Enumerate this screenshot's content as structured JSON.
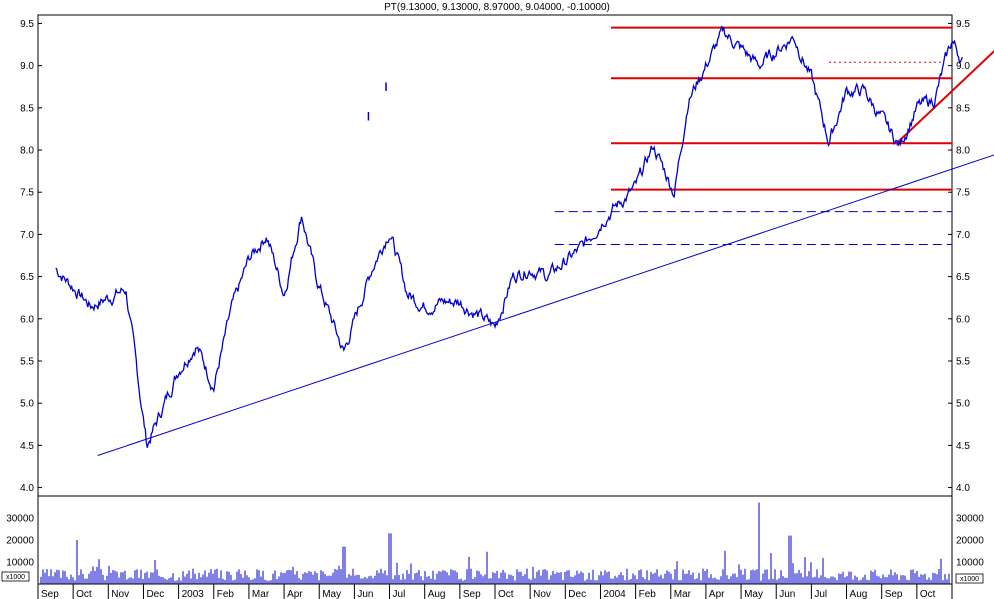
{
  "chart_data": {
    "type": "line",
    "title": "PT(9.13000, 9.13000, 8.97000, 9.04000, -0.10000)",
    "price_axis": {
      "ylim": [
        3.9,
        9.6
      ],
      "ticks": [
        "4.0",
        "4.5",
        "5.0",
        "5.5",
        "6.0",
        "6.5",
        "7.0",
        "7.5",
        "8.0",
        "8.5",
        "9.0",
        "9.5"
      ]
    },
    "volume_axis": {
      "ylim": [
        0,
        40000
      ],
      "ticks": [
        "10000",
        "20000",
        "30000"
      ],
      "unit_label": "x1000"
    },
    "x_labels": [
      "Sep",
      "Oct",
      "Nov",
      "Dec",
      "2003",
      "Feb",
      "Mar",
      "Apr",
      "May",
      "Jun",
      "Jul",
      "Aug",
      "Sep",
      "Oct",
      "Nov",
      "Dec",
      "2004",
      "Feb",
      "Mar",
      "Apr",
      "May",
      "Jun",
      "Jul",
      "Aug",
      "Sep",
      "Oct"
    ],
    "price_series": {
      "name": "PT",
      "color": "#0000cc",
      "x": [
        0,
        1,
        2,
        2.6,
        3.5,
        4,
        4.5,
        5,
        5.5,
        6,
        6.5,
        7,
        7.4,
        8.2,
        9,
        9.5,
        10,
        10.5,
        11,
        11.5,
        12.5,
        13,
        13.5,
        14,
        15,
        15.6,
        16.5,
        17,
        17.6,
        18,
        19,
        20,
        21,
        21.5,
        22,
        22.5,
        23,
        23.3,
        24,
        24.5,
        25,
        25.5,
        25.8
      ],
      "values": [
        6.6,
        6.15,
        6.35,
        4.5,
        5.4,
        5.7,
        5.2,
        6.1,
        6.7,
        7.0,
        6.3,
        7.25,
        6.5,
        5.6,
        6.6,
        7.05,
        6.3,
        6.15,
        6.2,
        6.2,
        5.9,
        6.5,
        6.6,
        6.5,
        6.85,
        7.2,
        7.55,
        8.05,
        7.5,
        8.6,
        9.4,
        9.0,
        9.35,
        8.85,
        8.1,
        8.7,
        8.7,
        8.5,
        8.05,
        8.5,
        8.6,
        9.3,
        9.05
      ]
    },
    "reference_lines": [
      {
        "kind": "horizontal",
        "value": 9.45,
        "style": "solid",
        "color": "#e00000"
      },
      {
        "kind": "horizontal",
        "value": 8.85,
        "style": "solid",
        "color": "#e00000"
      },
      {
        "kind": "horizontal",
        "value": 8.08,
        "style": "solid",
        "color": "#e00000"
      },
      {
        "kind": "horizontal",
        "value": 7.53,
        "style": "solid",
        "color": "#e00000"
      },
      {
        "kind": "horizontal",
        "value": 7.27,
        "style": "dashed",
        "color": "#0000cc"
      },
      {
        "kind": "horizontal",
        "value": 6.88,
        "style": "dashed",
        "color": "#0000cc"
      },
      {
        "kind": "trendline",
        "from": [
          1.2,
          4.38
        ],
        "to": [
          26.9,
          7.97
        ],
        "color": "#0000cc"
      },
      {
        "kind": "trendline",
        "from": [
          23.9,
          8.07
        ],
        "to": [
          26.9,
          9.25
        ],
        "color": "#e00000"
      },
      {
        "kind": "horizontal-dotted",
        "value": 9.04,
        "color": "#e00000"
      }
    ],
    "volume_series": {
      "name": "Volume",
      "color": "#0000cc",
      "spikes": [
        {
          "x": 0.6,
          "value": 20000
        },
        {
          "x": 8.2,
          "value": 17000
        },
        {
          "x": 9.5,
          "value": 23000
        },
        {
          "x": 20.0,
          "value": 37000
        },
        {
          "x": 20.9,
          "value": 22000
        }
      ]
    },
    "grid": false
  }
}
